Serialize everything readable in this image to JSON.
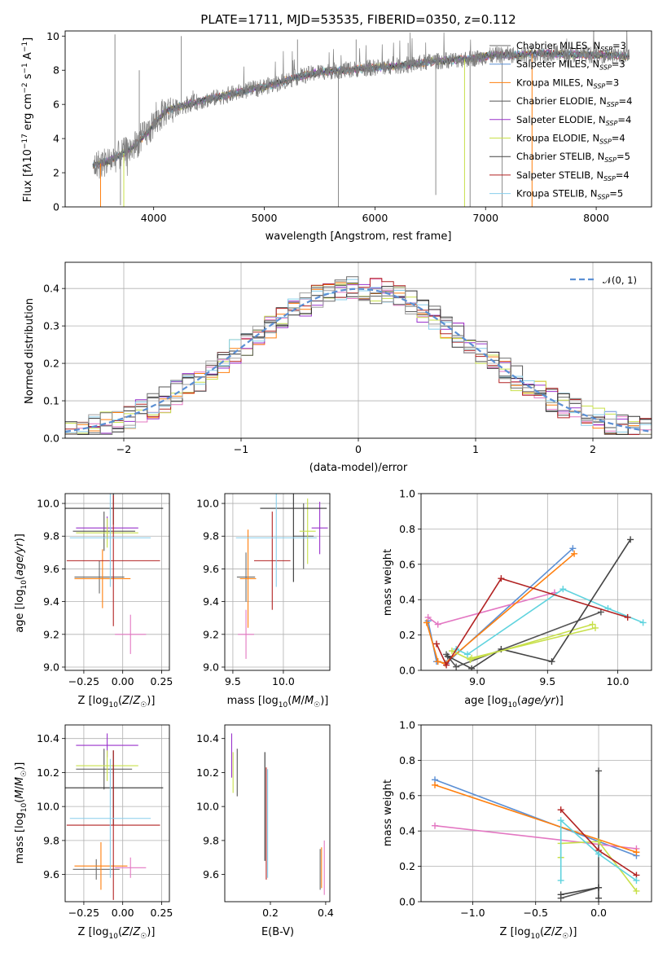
{
  "figure": {
    "title": "PLATE=1711, MJD=53535, FIBERID=0350, z=0.112",
    "colors": {
      "Chabrier MILES": "#6b6b6b",
      "Salpeter MILES": "#e377c2",
      "Kroupa MILES": "#ff7f0e",
      "Chabrier ELODIE": "#555555",
      "Salpeter ELODIE": "#9932cc",
      "Kroupa ELODIE": "#c8e04a",
      "Chabrier STELIB": "#333333",
      "Salpeter STELIB": "#b22222",
      "Kroupa STELIB": "#87ceeb"
    }
  },
  "chart_data": [
    {
      "id": "spectrum",
      "type": "line",
      "title": "PLATE=1711, MJD=53535, FIBERID=0350, z=0.112",
      "xlabel": "wavelength [Angstrom, rest frame]",
      "ylabel": "Flux [f_λ 10^-17 erg cm^-2 s^-1 A^-1]",
      "xlim": [
        3200,
        8500
      ],
      "ylim": [
        0,
        10.3
      ],
      "xticks": [
        4000,
        5000,
        6000,
        7000,
        8000
      ],
      "yticks": [
        0,
        2,
        4,
        6,
        8,
        10
      ],
      "grid": false,
      "legend_position": "top-right",
      "legend": [
        "Chabrier MILES, N_SSP=3",
        "Salpeter MILES, N_SSP=3",
        "Kroupa MILES, N_SSP=3",
        "Chabrier ELODIE, N_SSP=4",
        "Salpeter ELODIE, N_SSP=4",
        "Kroupa ELODIE, N_SSP=4",
        "Chabrier STELIB, N_SSP=5",
        "Salpeter STELIB, N_SSP=4",
        "Kroupa STELIB, N_SSP=5"
      ],
      "continuum": {
        "x": [
          3450,
          3600,
          3800,
          3950,
          4100,
          4300,
          4500,
          4700,
          4900,
          5100,
          5300,
          5500,
          5700,
          5900,
          6100,
          6300,
          6500,
          6700,
          6900,
          7100,
          7300,
          7500,
          7700,
          7900,
          8100,
          8300
        ],
        "y": [
          2.4,
          2.7,
          3.4,
          4.4,
          5.6,
          6.0,
          6.3,
          6.6,
          6.9,
          7.2,
          7.6,
          7.9,
          8.0,
          8.1,
          8.2,
          8.3,
          8.5,
          8.6,
          8.7,
          8.9,
          8.9,
          9.0,
          8.95,
          8.9,
          8.9,
          8.8
        ]
      },
      "data_noise": 0.5,
      "data_x_range": [
        3450,
        8300
      ],
      "data_dips": [
        {
          "x": 3700,
          "y": 0.1
        },
        {
          "x": 5670,
          "y": 0.0
        },
        {
          "x": 6550,
          "y": 0.7
        },
        {
          "x": 6860,
          "y": 0.0
        },
        {
          "x": 7150,
          "y": 0.0
        }
      ],
      "data_spikes": [
        {
          "x": 3650,
          "y": 10.1
        },
        {
          "x": 3870,
          "y": 8.0
        },
        {
          "x": 4250,
          "y": 10.0
        },
        {
          "x": 5300,
          "y": 9.8
        },
        {
          "x": 5830,
          "y": 9.8
        },
        {
          "x": 6300,
          "y": 9.6
        }
      ]
    },
    {
      "id": "residuals",
      "type": "step",
      "xlabel": "(data-model)/error",
      "ylabel": "Normed distribution",
      "xlim": [
        -2.5,
        2.5
      ],
      "ylim": [
        0,
        0.47
      ],
      "xticks": [
        -2,
        -1,
        0,
        1,
        2
      ],
      "yticks": [
        0.0,
        0.1,
        0.2,
        0.3,
        0.4
      ],
      "grid": true,
      "legend_position": "top-right",
      "legend": [
        "N(0,1)"
      ],
      "bin_width": 0.1,
      "bin_start": -2.5,
      "jitter": 0.035
    },
    {
      "id": "age-vs-Z",
      "type": "scatter",
      "xlabel": "Z [log10(Z/Z☉)]",
      "ylabel": "age [log10(age/yr)]",
      "xlim": [
        -0.37,
        0.3
      ],
      "ylim": [
        8.98,
        10.06
      ],
      "xticks": [
        -0.25,
        0.0,
        0.25
      ],
      "yticks": [
        9.0,
        9.2,
        9.4,
        9.6,
        9.8,
        10.0
      ],
      "grid": true,
      "points": [
        {
          "x": -0.15,
          "y": 9.55,
          "ex": 0.16,
          "ey": 0.1,
          "model": "Chabrier MILES"
        },
        {
          "x": 0.05,
          "y": 9.2,
          "ex": 0.1,
          "ey": 0.12,
          "model": "Salpeter MILES"
        },
        {
          "x": -0.13,
          "y": 9.54,
          "ex": 0.18,
          "ey": 0.18,
          "model": "Kroupa MILES"
        },
        {
          "x": -0.12,
          "y": 9.83,
          "ex": 0.2,
          "ey": 0.12,
          "model": "Chabrier ELODIE"
        },
        {
          "x": -0.1,
          "y": 9.85,
          "ex": 0.2,
          "ey": 0.07,
          "model": "Salpeter ELODIE"
        },
        {
          "x": -0.1,
          "y": 9.82,
          "ex": 0.2,
          "ey": 0.09,
          "model": "Kroupa ELODIE"
        },
        {
          "x": -0.06,
          "y": 9.97,
          "ex": 0.32,
          "ey": 0.1,
          "model": "Chabrier STELIB"
        },
        {
          "x": -0.06,
          "y": 9.65,
          "ex": 0.3,
          "ey": 0.4,
          "model": "Salpeter STELIB"
        },
        {
          "x": -0.08,
          "y": 9.79,
          "ex": 0.26,
          "ey": 0.3,
          "model": "Kroupa STELIB"
        }
      ]
    },
    {
      "id": "age-vs-mass",
      "type": "scatter",
      "xlabel": "mass [log10(M/M☉)]",
      "ylabel": "",
      "xlim": [
        9.42,
        10.46
      ],
      "ylim": [
        8.98,
        10.06
      ],
      "xticks": [
        9.5,
        10.0
      ],
      "yticks": [
        9.0,
        9.2,
        9.4,
        9.6,
        9.8,
        10.0
      ],
      "grid": true,
      "points": [
        {
          "x": 9.63,
          "y": 9.55,
          "ex": 0.09,
          "ey": 0.15,
          "model": "Chabrier MILES"
        },
        {
          "x": 9.63,
          "y": 9.2,
          "ex": 0.08,
          "ey": 0.15,
          "model": "Salpeter MILES"
        },
        {
          "x": 9.65,
          "y": 9.54,
          "ex": 0.08,
          "ey": 0.3,
          "model": "Kroupa MILES"
        },
        {
          "x": 10.2,
          "y": 9.8,
          "ex": 0.1,
          "ey": 0.2,
          "model": "Chabrier ELODIE"
        },
        {
          "x": 10.36,
          "y": 9.85,
          "ex": 0.08,
          "ey": 0.16,
          "model": "Salpeter ELODIE"
        },
        {
          "x": 10.24,
          "y": 9.83,
          "ex": 0.08,
          "ey": 0.2,
          "model": "Kroupa ELODIE"
        },
        {
          "x": 10.1,
          "y": 9.97,
          "ex": 0.33,
          "ey": 0.45,
          "model": "Chabrier STELIB"
        },
        {
          "x": 9.89,
          "y": 9.65,
          "ex": 0.18,
          "ey": 0.3,
          "model": "Salpeter STELIB"
        },
        {
          "x": 9.93,
          "y": 9.79,
          "ex": 0.4,
          "ey": 0.3,
          "model": "Kroupa STELIB"
        }
      ]
    },
    {
      "id": "weight-vs-age",
      "type": "line",
      "xlabel": "age [log10(age/yr)]",
      "ylabel": "mass weight",
      "xlim": [
        8.6,
        10.24
      ],
      "ylim": [
        0,
        1.0
      ],
      "xticks": [
        9.0,
        9.5,
        10.0
      ],
      "yticks": [
        0.0,
        0.2,
        0.4,
        0.6,
        0.8,
        1.0
      ],
      "grid": true,
      "series": [
        {
          "model": "Chabrier MILES",
          "color": "#5b8fd4",
          "x": [
            8.65,
            8.71,
            8.78,
            9.68
          ],
          "y": [
            0.28,
            0.05,
            0.04,
            0.69
          ]
        },
        {
          "model": "Salpeter MILES",
          "color": "#e377c2",
          "x": [
            8.65,
            8.72,
            9.55
          ],
          "y": [
            0.3,
            0.26,
            0.44
          ]
        },
        {
          "model": "Kroupa MILES",
          "color": "#ff7f0e",
          "x": [
            8.64,
            8.72,
            8.77,
            9.69
          ],
          "y": [
            0.27,
            0.05,
            0.04,
            0.66
          ]
        },
        {
          "model": "Chabrier ELODIE",
          "color": "#555555",
          "x": [
            8.78,
            8.85,
            9.88
          ],
          "y": [
            0.09,
            0.02,
            0.33
          ]
        },
        {
          "model": "Kroupa ELODIE",
          "color": "#c8e04a",
          "x": [
            8.82,
            8.95,
            9.82
          ],
          "y": [
            0.11,
            0.06,
            0.26
          ]
        },
        {
          "model": "Kroupa STELIB",
          "color": "#5fd3de",
          "x": [
            8.85,
            8.93,
            9.61,
            9.93,
            10.18
          ],
          "y": [
            0.12,
            0.09,
            0.46,
            0.35,
            0.27
          ]
        },
        {
          "model": "Chabrier STELIB",
          "color": "#444444",
          "x": [
            8.79,
            8.96,
            9.17,
            9.53,
            10.09
          ],
          "y": [
            0.08,
            0.01,
            0.12,
            0.05,
            0.74
          ]
        },
        {
          "model": "Salpeter STELIB",
          "color": "#b22222",
          "x": [
            8.71,
            8.78,
            9.17,
            10.07
          ],
          "y": [
            0.15,
            0.03,
            0.52,
            0.3
          ]
        },
        {
          "model": "Kroupa ELODIE 2",
          "color": "#c8e04a",
          "x": [
            8.96,
            9.84
          ],
          "y": [
            0.07,
            0.24
          ]
        }
      ]
    },
    {
      "id": "mass-vs-Z",
      "type": "scatter",
      "xlabel": "Z [log10(Z/Z☉)]",
      "ylabel": "mass [log10(M/M☉)]",
      "xlim": [
        -0.37,
        0.3
      ],
      "ylim": [
        9.44,
        10.48
      ],
      "xticks": [
        -0.25,
        0.0,
        0.25
      ],
      "yticks": [
        9.6,
        9.8,
        10.0,
        10.2,
        10.4
      ],
      "grid": true,
      "points": [
        {
          "x": -0.17,
          "y": 9.63,
          "ex": 0.15,
          "ey": 0.06,
          "model": "Chabrier MILES"
        },
        {
          "x": 0.05,
          "y": 9.64,
          "ex": 0.1,
          "ey": 0.06,
          "model": "Salpeter MILES"
        },
        {
          "x": -0.14,
          "y": 9.65,
          "ex": 0.17,
          "ey": 0.14,
          "model": "Kroupa MILES"
        },
        {
          "x": -0.12,
          "y": 10.22,
          "ex": 0.18,
          "ey": 0.12,
          "model": "Chabrier ELODIE"
        },
        {
          "x": -0.1,
          "y": 10.36,
          "ex": 0.2,
          "ey": 0.07,
          "model": "Salpeter ELODIE"
        },
        {
          "x": -0.1,
          "y": 10.24,
          "ex": 0.2,
          "ey": 0.09,
          "model": "Kroupa ELODIE"
        },
        {
          "x": -0.06,
          "y": 10.11,
          "ex": 0.32,
          "ey": 0.22,
          "model": "Chabrier STELIB"
        },
        {
          "x": -0.06,
          "y": 9.89,
          "ex": 0.3,
          "ey": 0.44,
          "model": "Salpeter STELIB"
        },
        {
          "x": -0.08,
          "y": 9.93,
          "ex": 0.26,
          "ey": 0.35,
          "model": "Kroupa STELIB"
        }
      ]
    },
    {
      "id": "mass-vs-EBV",
      "type": "scatter",
      "xlabel": "E(B-V)",
      "ylabel": "",
      "xlim": [
        0.035,
        0.415
      ],
      "ylim": [
        9.44,
        10.48
      ],
      "xticks": [
        0.2,
        0.4
      ],
      "yticks": [
        9.6,
        9.8,
        10.0,
        10.2,
        10.4
      ],
      "grid": false,
      "points": [
        {
          "x": 0.06,
          "y": 10.3,
          "ex": 0,
          "ey": 0.13,
          "model": "Salpeter ELODIE"
        },
        {
          "x": 0.065,
          "y": 10.2,
          "ex": 0,
          "ey": 0.12,
          "model": "Kroupa ELODIE"
        },
        {
          "x": 0.08,
          "y": 10.2,
          "ex": 0,
          "ey": 0.14,
          "model": "Chabrier ELODIE"
        },
        {
          "x": 0.18,
          "y": 10.0,
          "ex": 0,
          "ey": 0.32,
          "model": "Chabrier STELIB"
        },
        {
          "x": 0.185,
          "y": 9.9,
          "ex": 0,
          "ey": 0.33,
          "model": "Salpeter STELIB"
        },
        {
          "x": 0.19,
          "y": 9.9,
          "ex": 0,
          "ey": 0.32,
          "model": "Kroupa STELIB"
        },
        {
          "x": 0.38,
          "y": 9.63,
          "ex": 0,
          "ey": 0.12,
          "model": "Chabrier MILES"
        },
        {
          "x": 0.385,
          "y": 9.64,
          "ex": 0,
          "ey": 0.12,
          "model": "Kroupa MILES"
        },
        {
          "x": 0.395,
          "y": 9.64,
          "ex": 0,
          "ey": 0.16,
          "model": "Salpeter MILES"
        }
      ]
    },
    {
      "id": "weight-vs-Z",
      "type": "line",
      "xlabel": "Z [log10(Z/Z☉)]",
      "ylabel": "mass weight",
      "xlim": [
        -1.41,
        0.42
      ],
      "ylim": [
        0,
        1.0
      ],
      "xticks": [
        -1.0,
        -0.5,
        0.0
      ],
      "yticks": [
        0.0,
        0.2,
        0.4,
        0.6,
        0.8,
        1.0
      ],
      "grid": true,
      "series": [
        {
          "model": "Chabrier MILES",
          "color": "#5b8fd4",
          "x": [
            -1.3,
            0.3
          ],
          "y": [
            0.69,
            0.26
          ]
        },
        {
          "model": "Salpeter MILES",
          "color": "#e377c2",
          "x": [
            -1.3,
            0.3
          ],
          "y": [
            0.43,
            0.3
          ]
        },
        {
          "model": "Kroupa MILES",
          "color": "#ff7f0e",
          "x": [
            -1.3,
            0.3
          ],
          "y": [
            0.66,
            0.28
          ]
        },
        {
          "model": "Chabrier ELODIE",
          "color": "#555555",
          "x": [
            -0.3,
            0.0,
            0.0
          ],
          "y": [
            0.02,
            0.08,
            0.74
          ]
        },
        {
          "model": "Kroupa ELODIE",
          "color": "#c8e04a",
          "x": [
            -0.3,
            -0.3,
            0.0,
            0.3
          ],
          "y": [
            0.25,
            0.33,
            0.34,
            0.06
          ]
        },
        {
          "model": "Salpeter STELIB",
          "color": "#b22222",
          "x": [
            -0.3,
            0.0,
            0.3
          ],
          "y": [
            0.52,
            0.29,
            0.15
          ]
        },
        {
          "model": "Kroupa STELIB",
          "color": "#5fd3de",
          "x": [
            -0.3,
            -0.3,
            0.0,
            0.3
          ],
          "y": [
            0.12,
            0.46,
            0.27,
            0.12
          ]
        },
        {
          "model": "Chabrier STELIB",
          "color": "#444444",
          "x": [
            -0.3,
            0.0,
            0.0
          ],
          "y": [
            0.04,
            0.08,
            0.02
          ]
        }
      ]
    }
  ]
}
